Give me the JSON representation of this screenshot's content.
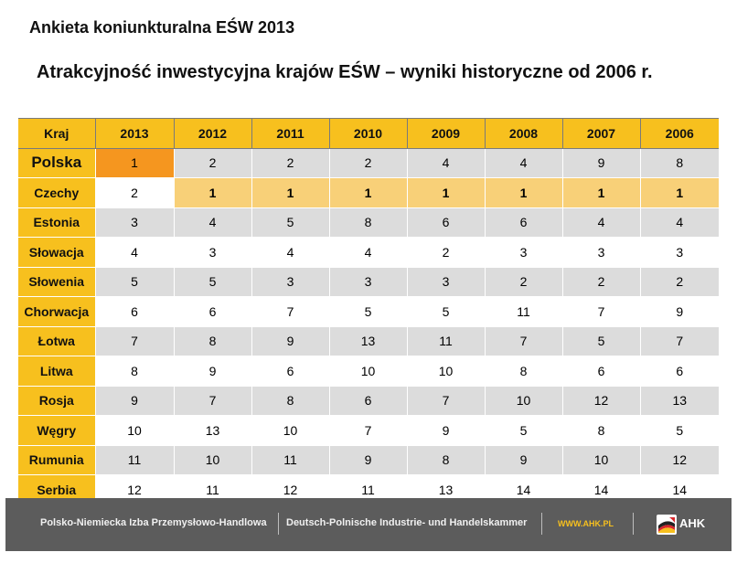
{
  "slide": {
    "header_title": "Ankieta koniunkturalna EŚW 2013",
    "sub_title": "Atrakcyjność inwestycyjna krajów EŚW – wyniki historyczne od 2006 r."
  },
  "table": {
    "headers": [
      "Kraj",
      "2013",
      "2012",
      "2011",
      "2010",
      "2009",
      "2008",
      "2007",
      "2006"
    ],
    "rows": [
      {
        "country": "Polska",
        "values": [
          "1",
          "2",
          "2",
          "2",
          "4",
          "4",
          "9",
          "8"
        ]
      },
      {
        "country": "Czechy",
        "values": [
          "2",
          "1",
          "1",
          "1",
          "1",
          "1",
          "1",
          "1"
        ]
      },
      {
        "country": "Estonia",
        "values": [
          "3",
          "4",
          "5",
          "8",
          "6",
          "6",
          "4",
          "4"
        ]
      },
      {
        "country": "Słowacja",
        "values": [
          "4",
          "3",
          "4",
          "4",
          "2",
          "3",
          "3",
          "3"
        ]
      },
      {
        "country": "Słowenia",
        "values": [
          "5",
          "5",
          "3",
          "3",
          "3",
          "2",
          "2",
          "2"
        ]
      },
      {
        "country": "Chorwacja",
        "values": [
          "6",
          "6",
          "7",
          "5",
          "5",
          "11",
          "7",
          "9"
        ]
      },
      {
        "country": "Łotwa",
        "values": [
          "7",
          "8",
          "9",
          "13",
          "11",
          "7",
          "5",
          "7"
        ]
      },
      {
        "country": "Litwa",
        "values": [
          "8",
          "9",
          "6",
          "10",
          "10",
          "8",
          "6",
          "6"
        ]
      },
      {
        "country": "Rosja",
        "values": [
          "9",
          "7",
          "8",
          "6",
          "7",
          "10",
          "12",
          "13"
        ]
      },
      {
        "country": "Węgry",
        "values": [
          "10",
          "13",
          "10",
          "7",
          "9",
          "5",
          "8",
          "5"
        ]
      },
      {
        "country": "Rumunia",
        "values": [
          "11",
          "10",
          "11",
          "9",
          "8",
          "9",
          "10",
          "12"
        ]
      },
      {
        "country": "Serbia",
        "values": [
          "12",
          "11",
          "12",
          "11",
          "13",
          "14",
          "14",
          "14"
        ]
      }
    ]
  },
  "colors": {
    "header_yellow": "#f7c01e",
    "highlight_orange": "#f5961f",
    "highlight_light": "#f8d078",
    "stripe_grey": "#dcdcdc",
    "footer_grey": "#5c5c5c"
  },
  "footer": {
    "org_pl": "Polsko-Niemiecka Izba Przemysłowo-Handlowa",
    "org_de": "Deutsch-Polnische Industrie- und Handelskammer",
    "url": "WWW.AHK.PL",
    "logo_text": "AHK",
    "logo_icon": "ahk-flag-icon"
  }
}
